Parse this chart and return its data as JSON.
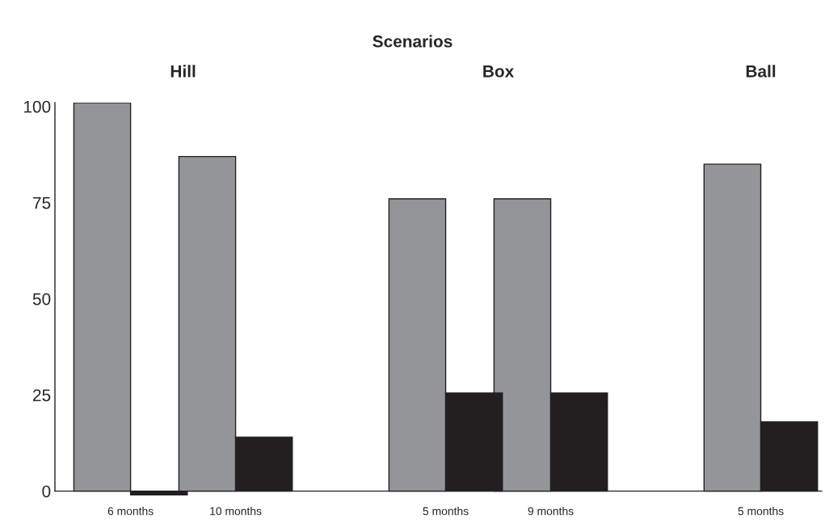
{
  "chart_data": {
    "type": "bar",
    "title": "Scenarios",
    "annotations": [
      "Hill",
      "Box",
      "Ball"
    ],
    "categories": [
      "6 months",
      "10 months",
      null,
      "5 months",
      "9 months",
      null,
      "5 months"
    ],
    "series": [
      {
        "color": "#939598",
        "values": [
          101,
          87,
          null,
          76,
          76,
          null,
          85
        ]
      },
      {
        "color": "#231f20",
        "values": [
          -1,
          14,
          null,
          25.5,
          25.5,
          null,
          18
        ]
      }
    ],
    "ylim": [
      -2,
      101
    ],
    "yticks": [
      0,
      25,
      50,
      75,
      100
    ],
    "grid": false,
    "legend": false
  }
}
